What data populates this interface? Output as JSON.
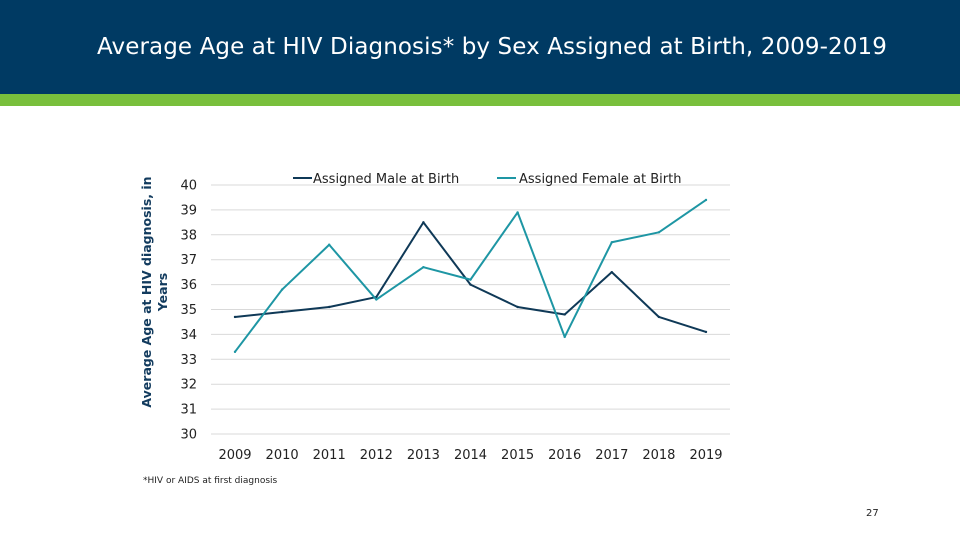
{
  "slide": {
    "title": "Average Age at HIV Diagnosis* by Sex Assigned at Birth, 2009-2019",
    "footnote": "*HIV or AIDS at first diagnosis",
    "page_number": "27"
  },
  "colors": {
    "header": "#003a63",
    "accent": "#79bf3c",
    "male": "#0f3957",
    "female": "#1e96a4",
    "grid": "#d9d9d9"
  },
  "chart_data": {
    "type": "line",
    "title": "",
    "xlabel": "",
    "ylabel_lines": [
      "Average Age at HIV diagnosis, in",
      "Years"
    ],
    "ylim": [
      30,
      40
    ],
    "yticks": [
      30,
      31,
      32,
      33,
      34,
      35,
      36,
      37,
      38,
      39,
      40
    ],
    "grid": true,
    "legend_position": "top",
    "categories": [
      "2009",
      "2010",
      "2011",
      "2012",
      "2013",
      "2014",
      "2015",
      "2016",
      "2017",
      "2018",
      "2019"
    ],
    "series": [
      {
        "name": "Assigned Male at Birth",
        "color": "#0f3957",
        "values": [
          34.7,
          34.9,
          35.1,
          35.5,
          38.5,
          36.0,
          35.1,
          34.8,
          36.5,
          34.7,
          34.1
        ]
      },
      {
        "name": "Assigned Female at Birth",
        "color": "#1e96a4",
        "values": [
          33.3,
          35.8,
          37.6,
          35.4,
          36.7,
          36.2,
          38.9,
          33.9,
          37.7,
          38.1,
          39.4
        ]
      }
    ]
  }
}
